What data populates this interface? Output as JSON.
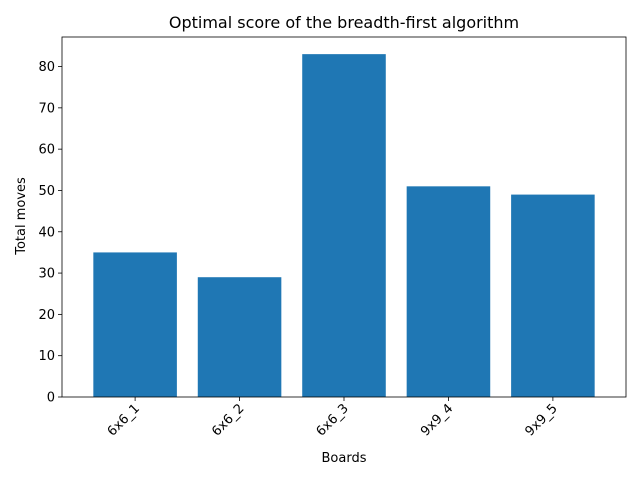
{
  "chart_data": {
    "type": "bar",
    "title": "Optimal score of the breadth-first algorithm",
    "xlabel": "Boards",
    "ylabel": "Total moves",
    "categories": [
      "6x6_1",
      "6x6_2",
      "6x6_3",
      "9x9_4",
      "9x9_5"
    ],
    "values": [
      35,
      29,
      83,
      51,
      49
    ],
    "ylim": [
      0,
      87.15
    ],
    "yticks": [
      0,
      10,
      20,
      30,
      40,
      50,
      60,
      70,
      80
    ],
    "grid": false,
    "bar_color": "#1f77b4",
    "xtick_rotation": "45°"
  }
}
